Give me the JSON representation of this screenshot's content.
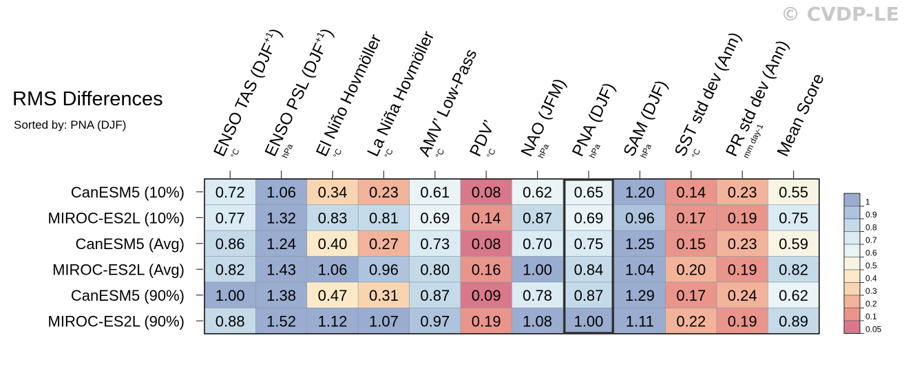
{
  "watermark": "© CVDP-LE",
  "title": "RMS Differences",
  "subtitle": "Sorted by: PNA (DJF)",
  "chart_data": {
    "type": "heatmap",
    "columns": [
      {
        "label": "ENSO TAS (DJF",
        "sup": "+1",
        "close": ")",
        "unit": "°C"
      },
      {
        "label": "ENSO PSL (DJF",
        "sup": "+1",
        "close": ")",
        "unit": "hPa"
      },
      {
        "label": "El Niño Hovmöller",
        "sup": "",
        "close": "",
        "unit": "°C"
      },
      {
        "label": "La Niña Hovmöller",
        "sup": "",
        "close": "",
        "unit": "°C"
      },
      {
        "label": "AMV’ Low-Pass",
        "sup": "",
        "close": "",
        "unit": "°C"
      },
      {
        "label": "PDV’",
        "sup": "",
        "close": "",
        "unit": "°C"
      },
      {
        "label": "NAO (JFM)",
        "sup": "",
        "close": "",
        "unit": "hPa"
      },
      {
        "label": "PNA (DJF)",
        "sup": "",
        "close": "",
        "unit": "hPa"
      },
      {
        "label": "SAM (DJF)",
        "sup": "",
        "close": "",
        "unit": "hPa"
      },
      {
        "label": "SST std dev (Ann)",
        "sup": "",
        "close": "",
        "unit": "°C"
      },
      {
        "label": "PR std dev (Ann)",
        "sup": "",
        "close": "",
        "unit": "mm day-1"
      },
      {
        "label": "Mean Score",
        "sup": "",
        "close": "",
        "unit": ""
      }
    ],
    "rows": [
      "CanESM5 (10%)",
      "MIROC-ES2L (10%)",
      "CanESM5 (Avg)",
      "MIROC-ES2L (Avg)",
      "CanESM5 (90%)",
      "MIROC-ES2L (90%)"
    ],
    "values": [
      [
        "0.72",
        "1.06",
        "0.34",
        "0.23",
        "0.61",
        "0.08",
        "0.62",
        "0.65",
        "1.20",
        "0.14",
        "0.23",
        "0.55"
      ],
      [
        "0.77",
        "1.32",
        "0.83",
        "0.81",
        "0.69",
        "0.14",
        "0.87",
        "0.69",
        "0.96",
        "0.17",
        "0.19",
        "0.75"
      ],
      [
        "0.86",
        "1.24",
        "0.40",
        "0.27",
        "0.73",
        "0.08",
        "0.70",
        "0.75",
        "1.25",
        "0.15",
        "0.23",
        "0.59"
      ],
      [
        "0.82",
        "1.43",
        "1.06",
        "0.96",
        "0.80",
        "0.16",
        "1.00",
        "0.84",
        "1.04",
        "0.20",
        "0.19",
        "0.82"
      ],
      [
        "1.00",
        "1.38",
        "0.47",
        "0.31",
        "0.87",
        "0.09",
        "0.78",
        "0.87",
        "1.29",
        "0.17",
        "0.24",
        "0.62"
      ],
      [
        "0.88",
        "1.52",
        "1.12",
        "1.07",
        "0.97",
        "0.19",
        "1.08",
        "1.00",
        "1.11",
        "0.22",
        "0.19",
        "0.89"
      ]
    ],
    "highlight_column": 7,
    "colorbar": {
      "labels": [
        "1",
        "0.9",
        "0.8",
        "0.7",
        "0.6",
        "0.5",
        "0.4",
        "0.3",
        "0.2",
        "0.1",
        "0.05"
      ],
      "colors": [
        "#9aaccf",
        "#aec3dd",
        "#c5dae8",
        "#dbebf3",
        "#eaf3f6",
        "#f8f4e4",
        "#fbe9c8",
        "#f8d4b0",
        "#f2b39a",
        "#e9958c",
        "#d9788a"
      ]
    }
  }
}
